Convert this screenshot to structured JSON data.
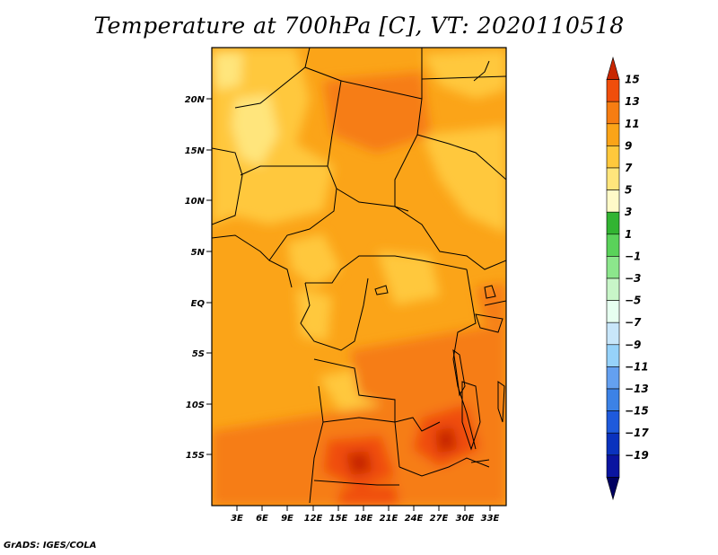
{
  "title": "Temperature at 700hPa [C], VT: 2020110518",
  "credit": "GrADS: IGES/COLA",
  "map": {
    "lat_ticks": [
      "20N",
      "15N",
      "10N",
      "5N",
      "EQ",
      "5S",
      "10S",
      "15S"
    ],
    "lon_ticks": [
      "3E",
      "6E",
      "9E",
      "12E",
      "15E",
      "18E",
      "21E",
      "24E",
      "27E",
      "30E",
      "33E"
    ]
  },
  "colorbar": {
    "labels": [
      "15",
      "13",
      "11",
      "9",
      "7",
      "5",
      "3",
      "1",
      "−1",
      "−3",
      "−5",
      "−7",
      "−9",
      "−11",
      "−13",
      "−15",
      "−17",
      "−19"
    ],
    "colors": [
      "#c82600",
      "#f04e0c",
      "#f67d12",
      "#fba418",
      "#ffc83c",
      "#ffe57c",
      "#fffac8",
      "#32b432",
      "#5ad25a",
      "#8ce68c",
      "#c8f5c8",
      "#e6fff0",
      "#c8e6fa",
      "#96d2fa",
      "#64a0f0",
      "#3c82e6",
      "#1e5adc",
      "#0a32be",
      "#0a14a0",
      "#000060"
    ]
  }
}
